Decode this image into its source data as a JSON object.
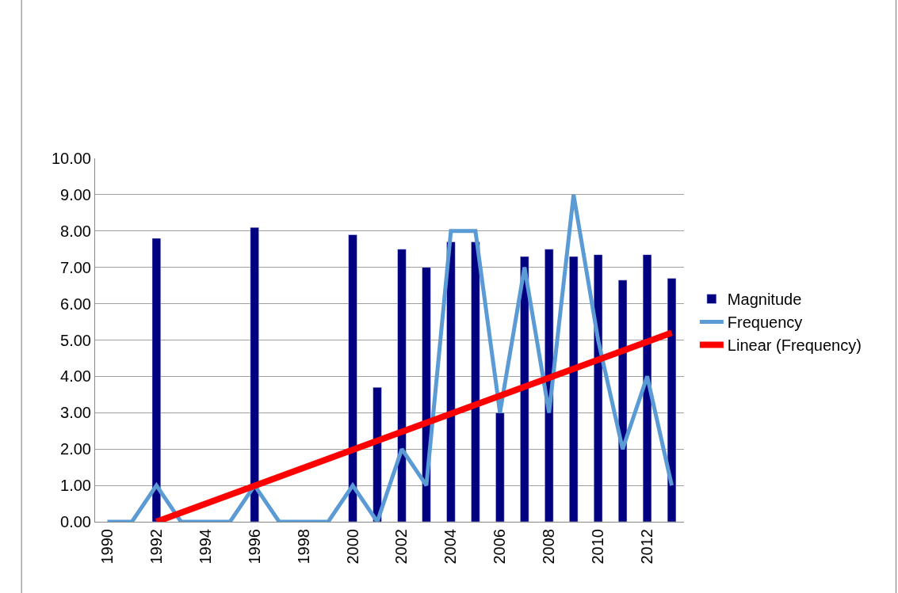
{
  "chart_data": {
    "type": "bar",
    "categories": [
      "1990",
      null,
      "1992",
      null,
      "1994",
      null,
      "1996",
      null,
      "1998",
      null,
      "2000",
      null,
      "2002",
      null,
      "2004",
      null,
      "2006",
      null,
      "2008",
      null,
      "2010",
      null,
      "2012",
      null
    ],
    "series": [
      {
        "name": "Magnitude",
        "color": "#000080",
        "values": [
          null,
          null,
          7.8,
          null,
          null,
          null,
          8.1,
          null,
          null,
          null,
          7.9,
          3.7,
          7.5,
          7.0,
          7.7,
          7.7,
          3.0,
          7.3,
          7.5,
          7.3,
          7.35,
          6.65,
          7.35,
          6.7
        ]
      },
      {
        "name": "Frequency",
        "type": "line",
        "color": "#5b9bd5",
        "values": [
          0,
          0,
          1,
          0,
          0,
          0,
          1,
          0,
          0,
          0,
          1,
          0,
          2,
          1,
          8,
          8,
          3,
          7,
          3,
          9,
          5,
          2,
          4,
          1
        ]
      },
      {
        "name": "Linear (Frequency)",
        "type": "line",
        "color": "#ff0000",
        "values": [
          null,
          null,
          0,
          null,
          null,
          null,
          null,
          null,
          null,
          null,
          null,
          null,
          null,
          null,
          null,
          null,
          null,
          null,
          null,
          null,
          null,
          null,
          null,
          5.2
        ]
      }
    ],
    "ylim": [
      0,
      10
    ],
    "yticks": [
      {
        "value": 0,
        "label": "0.00"
      },
      {
        "value": 1,
        "label": "1.00"
      },
      {
        "value": 2,
        "label": "2.00"
      },
      {
        "value": 3,
        "label": "3.00"
      },
      {
        "value": 4,
        "label": "4.00"
      },
      {
        "value": 5,
        "label": "5.00"
      },
      {
        "value": 6,
        "label": "6.00"
      },
      {
        "value": 7,
        "label": "7.00"
      },
      {
        "value": 8,
        "label": "8.00"
      },
      {
        "value": 9,
        "label": "9.00"
      },
      {
        "value": 10,
        "label": "10.00"
      }
    ],
    "grid": "y",
    "legend": "right",
    "marker": "none"
  }
}
